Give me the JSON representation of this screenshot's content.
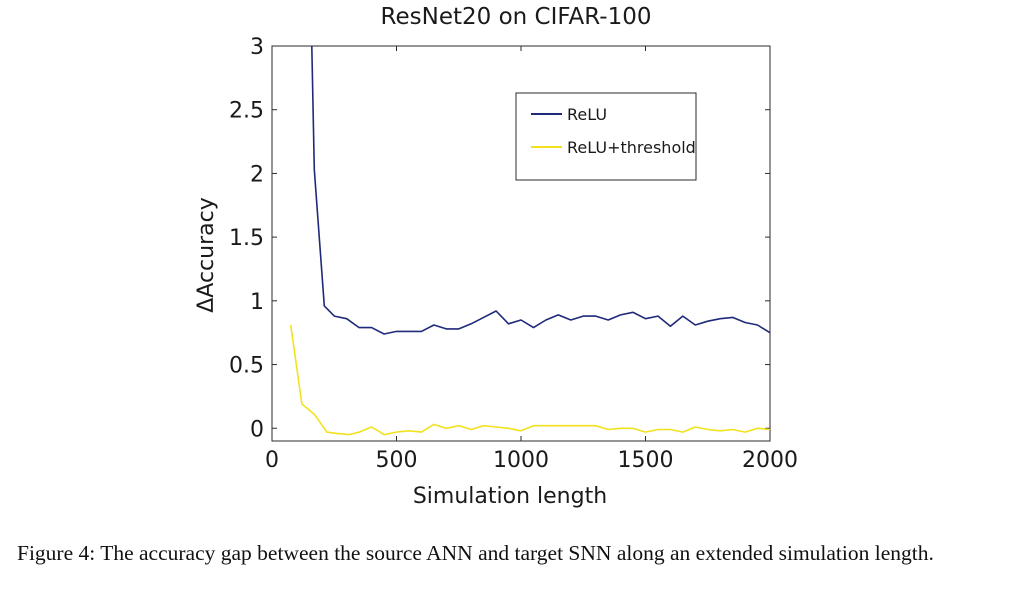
{
  "chart_data": {
    "type": "line",
    "title": "ResNet20 on CIFAR-100",
    "xlabel": "Simulation length",
    "ylabel": "ΔAccuracy",
    "xlim": [
      0,
      2000
    ],
    "ylim": [
      -0.1,
      3
    ],
    "xticks": [
      0,
      500,
      1000,
      1500,
      2000
    ],
    "yticks": [
      0,
      0.5,
      1,
      1.5,
      2,
      2.5,
      3
    ],
    "xtick_labels": [
      "0",
      "500",
      "1000",
      "1500",
      "2000"
    ],
    "ytick_labels": [
      "0",
      "0.5",
      "1",
      "1.5",
      "2",
      "2.5",
      "3"
    ],
    "grid": false,
    "legend": "top-right",
    "series": [
      {
        "name": "ReLU",
        "color": "#1f2a7a",
        "x": [
          160,
          170,
          210,
          250,
          300,
          350,
          400,
          450,
          500,
          550,
          600,
          650,
          700,
          750,
          800,
          850,
          900,
          950,
          1000,
          1050,
          1100,
          1150,
          1200,
          1250,
          1300,
          1350,
          1400,
          1450,
          1500,
          1550,
          1600,
          1650,
          1700,
          1750,
          1800,
          1850,
          1900,
          1950,
          2000
        ],
        "y": [
          3.0,
          2.03,
          0.96,
          0.88,
          0.86,
          0.79,
          0.79,
          0.74,
          0.76,
          0.76,
          0.76,
          0.81,
          0.78,
          0.78,
          0.82,
          0.87,
          0.92,
          0.82,
          0.85,
          0.79,
          0.85,
          0.89,
          0.85,
          0.88,
          0.88,
          0.85,
          0.89,
          0.91,
          0.86,
          0.88,
          0.8,
          0.88,
          0.81,
          0.84,
          0.86,
          0.87,
          0.83,
          0.81,
          0.75
        ]
      },
      {
        "name": "ReLU+threshold",
        "color": "#f2e21d",
        "x": [
          75,
          120,
          170,
          220,
          260,
          310,
          350,
          400,
          450,
          500,
          550,
          600,
          650,
          700,
          750,
          800,
          850,
          900,
          950,
          1000,
          1050,
          1100,
          1150,
          1200,
          1250,
          1300,
          1350,
          1400,
          1450,
          1500,
          1550,
          1600,
          1650,
          1700,
          1750,
          1800,
          1850,
          1900,
          1950,
          2000
        ],
        "y": [
          0.81,
          0.19,
          0.11,
          -0.03,
          -0.04,
          -0.05,
          -0.03,
          0.01,
          -0.05,
          -0.03,
          -0.02,
          -0.03,
          0.03,
          0.0,
          0.02,
          -0.01,
          0.02,
          0.01,
          0.0,
          -0.02,
          0.02,
          0.02,
          0.02,
          0.02,
          0.02,
          0.02,
          -0.01,
          0.0,
          0.0,
          -0.03,
          -0.01,
          -0.01,
          -0.03,
          0.01,
          -0.01,
          -0.02,
          -0.01,
          -0.03,
          0.0,
          -0.01
        ]
      }
    ]
  },
  "caption": "Figure 4: The accuracy gap between the source ANN and target SNN along an extended simulation length."
}
